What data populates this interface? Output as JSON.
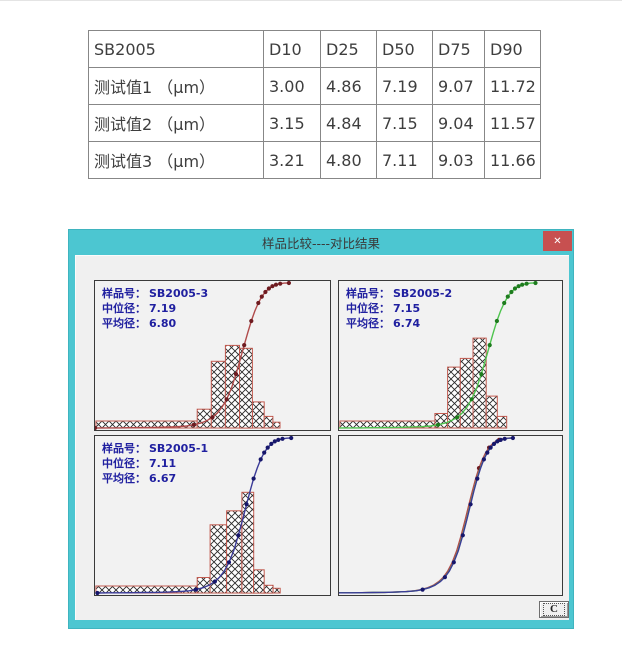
{
  "table": {
    "header": [
      "SB2005",
      "D10",
      "D25",
      "D50",
      "D75",
      "D90"
    ],
    "rows": [
      {
        "label": "测试值1 （μm）",
        "values": [
          "3.00",
          "4.86",
          "7.19",
          "9.07",
          "11.72"
        ]
      },
      {
        "label": "测试值2 （μm）",
        "values": [
          "3.15",
          "4.84",
          "7.15",
          "9.04",
          "11.57"
        ]
      },
      {
        "label": "测试值3 （μm）",
        "values": [
          "3.21",
          "4.80",
          "7.11",
          "9.03",
          "11.66"
        ]
      }
    ]
  },
  "dialog": {
    "title": "样品比较----对比结果",
    "close_glyph": "✕",
    "confirm_button_label": "C",
    "colors": {
      "titlebar": "#4cc6d1",
      "close_bg": "#c75050",
      "client_bg": "#f0f0f0",
      "panel_bg": "#f2f2f2",
      "panel_border": "#3a3a3a",
      "label_text": "#2020a0",
      "red_line": "#b04b4b",
      "red_marker": "#6e1b20",
      "green_line": "#4ec44e",
      "green_marker": "#1e7c1e",
      "blue_line": "#3b3b98",
      "blue_marker": "#16166b",
      "bar_stroke": "#c25b50"
    },
    "curve_base": [
      [
        0.0,
        0.0
      ],
      [
        0.05,
        0.001
      ],
      [
        0.1,
        0.001
      ],
      [
        0.15,
        0.002
      ],
      [
        0.2,
        0.003
      ],
      [
        0.25,
        0.004
      ],
      [
        0.3,
        0.006
      ],
      [
        0.35,
        0.009
      ],
      [
        0.39,
        0.014
      ],
      [
        0.42,
        0.022
      ],
      [
        0.45,
        0.034
      ],
      [
        0.475,
        0.05
      ],
      [
        0.5,
        0.074
      ],
      [
        0.52,
        0.102
      ],
      [
        0.54,
        0.142
      ],
      [
        0.56,
        0.198
      ],
      [
        0.58,
        0.272
      ],
      [
        0.6,
        0.372
      ],
      [
        0.618,
        0.472
      ],
      [
        0.635,
        0.572
      ],
      [
        0.65,
        0.658
      ],
      [
        0.665,
        0.738
      ],
      [
        0.68,
        0.806
      ],
      [
        0.695,
        0.862
      ],
      [
        0.71,
        0.906
      ],
      [
        0.725,
        0.938
      ],
      [
        0.74,
        0.962
      ],
      [
        0.755,
        0.978
      ],
      [
        0.77,
        0.988
      ],
      [
        0.788,
        0.995
      ],
      [
        0.806,
        0.999
      ],
      [
        0.825,
        1.0
      ]
    ],
    "default_marker_idx": [
      0,
      9,
      12,
      15,
      17,
      19,
      21,
      23,
      24,
      25,
      26,
      27,
      28,
      29,
      31
    ],
    "panels": [
      {
        "id": "SB2005-3",
        "lines": [
          {
            "label": "样品号：",
            "value": "SB2005-3"
          },
          {
            "label": "中位径：",
            "value": "7.19"
          },
          {
            "label": "平均径：",
            "value": "6.80"
          }
        ],
        "histogram": {
          "stroke": "#c25b50",
          "strip": [
            0.004,
            0.435,
            0.048
          ],
          "bins": [
            [
              0.435,
              0.495,
              0.13
            ],
            [
              0.495,
              0.555,
              0.46
            ],
            [
              0.555,
              0.615,
              0.57
            ],
            [
              0.615,
              0.67,
              0.55
            ],
            [
              0.67,
              0.72,
              0.18
            ],
            [
              0.72,
              0.757,
              0.08
            ],
            [
              0.757,
              0.787,
              0.04
            ]
          ]
        },
        "curves": [
          {
            "color": "#b04b4b",
            "marker": "#6e1b20",
            "x_scale": 1.0,
            "x_shift": 0,
            "marker_idx": [
              0,
              9,
              12,
              15,
              17,
              19,
              21,
              23,
              24,
              25,
              26,
              27,
              28,
              29,
              31
            ]
          }
        ]
      },
      {
        "id": "SB2005-2",
        "lines": [
          {
            "label": "样品号：",
            "value": "SB2005-2"
          },
          {
            "label": "中位径：",
            "value": "7.15"
          },
          {
            "label": "平均径：",
            "value": "6.74"
          }
        ],
        "histogram": {
          "stroke": "#c25b50",
          "strip": [
            0.004,
            0.43,
            0.048
          ],
          "bins": [
            [
              0.43,
              0.487,
              0.1
            ],
            [
              0.487,
              0.544,
              0.42
            ],
            [
              0.544,
              0.601,
              0.48
            ],
            [
              0.601,
              0.66,
              0.62
            ],
            [
              0.66,
              0.71,
              0.22
            ],
            [
              0.71,
              0.752,
              0.08
            ]
          ]
        },
        "curves": [
          {
            "color": "#4ec44e",
            "marker": "#1e7c1e",
            "x_scale": 1.08,
            "x_shift": -0.01,
            "marker_idx": [
              0,
              9,
              12,
              15,
              17,
              19,
              21,
              23,
              24,
              25,
              26,
              27,
              28,
              29,
              31
            ]
          }
        ]
      },
      {
        "id": "SB2005-1",
        "lines": [
          {
            "label": "样品号：",
            "value": "SB2005-1"
          },
          {
            "label": "中位径：",
            "value": "7.11"
          },
          {
            "label": "平均径：",
            "value": "6.67"
          }
        ],
        "histogram": {
          "stroke": "#c25b50",
          "strip": [
            0.004,
            0.435,
            0.045
          ],
          "bins": [
            [
              0.435,
              0.49,
              0.1
            ],
            [
              0.49,
              0.56,
              0.44
            ],
            [
              0.56,
              0.625,
              0.53
            ],
            [
              0.625,
              0.675,
              0.65
            ],
            [
              0.675,
              0.72,
              0.15
            ],
            [
              0.72,
              0.758,
              0.05
            ],
            [
              0.758,
              0.788,
              0.03
            ]
          ]
        },
        "curves": [
          {
            "color": "#3b3b98",
            "marker": "#16166b",
            "x_scale": 1.0,
            "x_shift": 0.01,
            "marker_idx": [
              0,
              9,
              12,
              15,
              17,
              19,
              21,
              23,
              24,
              25,
              26,
              27,
              28,
              29,
              31
            ]
          }
        ]
      },
      {
        "id": "overlay",
        "curves": [
          {
            "color": "#b04b4b",
            "marker": "#6e1b20",
            "x_scale": 1.0,
            "x_shift": -0.052,
            "marker_idx": [
              22,
              25,
              28
            ]
          },
          {
            "color": "#4ec44e",
            "marker": "#1e7c1e",
            "x_scale": 1.0,
            "x_shift": -0.046,
            "marker_idx": []
          },
          {
            "color": "#3b3b98",
            "marker": "#16166b",
            "x_scale": 1.0,
            "x_shift": -0.045,
            "marker_idx": [
              0,
              9,
              13,
              15,
              17,
              19,
              21,
              23,
              24,
              25,
              26,
              27,
              28,
              29,
              31
            ]
          }
        ]
      }
    ]
  }
}
